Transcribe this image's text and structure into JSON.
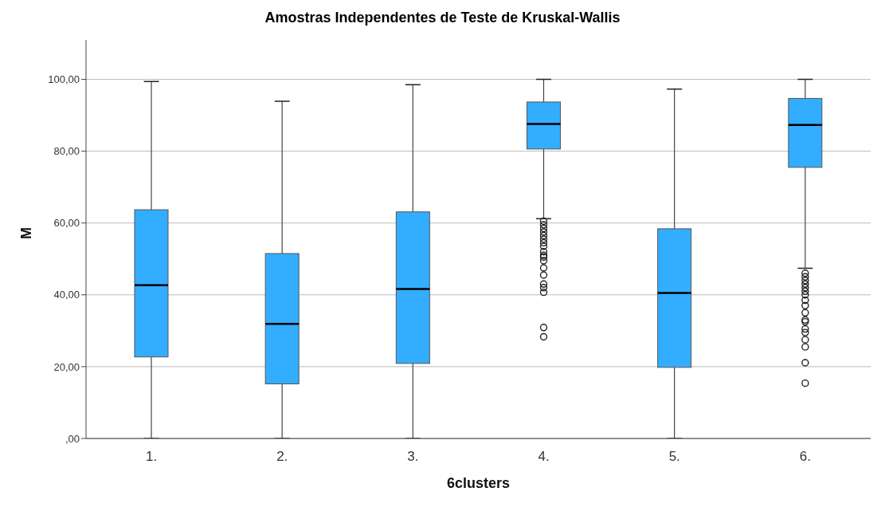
{
  "chart_data": {
    "type": "box",
    "title": "Amostras Independentes de Teste de Kruskal-Wallis",
    "xlabel": "6clusters",
    "ylabel": "M",
    "categories": [
      "1.",
      "2.",
      "3.",
      "4.",
      "5.",
      "6."
    ],
    "color": "#33adff",
    "boxes": [
      {
        "low": 0,
        "q1": 22.7,
        "median": 42.7,
        "q3": 63.7,
        "high": 99.4
      },
      {
        "low": 0,
        "q1": 15.2,
        "median": 31.9,
        "q3": 51.5,
        "high": 93.9
      },
      {
        "low": 0,
        "q1": 20.9,
        "median": 41.6,
        "q3": 63.1,
        "high": 98.5
      },
      {
        "low": 61.2,
        "q1": 80.6,
        "median": 87.6,
        "q3": 93.7,
        "high": 100,
        "outliers": [
          60.5,
          59.5,
          58.5,
          57.5,
          56.5,
          55.5,
          54.5,
          53.5,
          52,
          51,
          50.5,
          49.5,
          47.5,
          45.5,
          43,
          42,
          40.7,
          30.9,
          28.3
        ]
      },
      {
        "low": 0,
        "q1": 19.8,
        "median": 40.5,
        "q3": 58.4,
        "high": 97.3
      },
      {
        "low": 47.4,
        "q1": 75.5,
        "median": 87.3,
        "q3": 94.7,
        "high": 100,
        "outliers": [
          46,
          45,
          44,
          43,
          42,
          41,
          40,
          38.5,
          37,
          35,
          33,
          32.5,
          30.5,
          29.5,
          27.5,
          25.5,
          21.1,
          15.4
        ]
      }
    ],
    "ylim": [
      0,
      111
    ],
    "yticks": [
      {
        "value": 0,
        "label": ",00"
      },
      {
        "value": 20,
        "label": "20,00"
      },
      {
        "value": 40,
        "label": "40,00"
      },
      {
        "value": 60,
        "label": "60,00"
      },
      {
        "value": 80,
        "label": "80,00"
      },
      {
        "value": 100,
        "label": "100,00"
      }
    ],
    "grid": "y"
  }
}
